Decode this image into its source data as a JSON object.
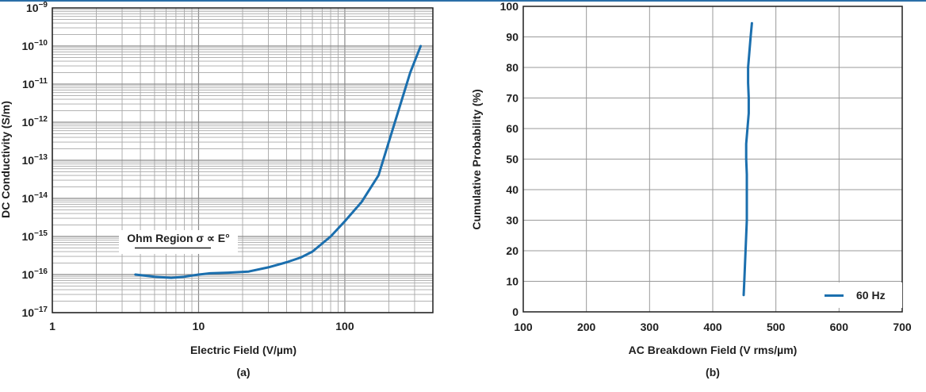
{
  "chart_data": [
    {
      "panel_label": "(a)",
      "type": "line",
      "xlabel": "Electric Field (V/µm)",
      "ylabel": "DC Conductivity (S/m)",
      "x_scale": "log",
      "y_scale": "log",
      "xlim": [
        1,
        400
      ],
      "ylim": [
        1e-17,
        1e-09
      ],
      "x_ticks": [
        {
          "value": 1,
          "label": "1"
        },
        {
          "value": 10,
          "label": "10"
        },
        {
          "value": 100,
          "label": "100"
        }
      ],
      "y_ticks": [
        {
          "value": 1e-09,
          "base": "10",
          "exp": "−9"
        },
        {
          "value": 1e-10,
          "base": "10",
          "exp": "−10"
        },
        {
          "value": 1e-11,
          "base": "10",
          "exp": "−11"
        },
        {
          "value": 1e-12,
          "base": "10",
          "exp": "−12"
        },
        {
          "value": 1e-13,
          "base": "10",
          "exp": "−13"
        },
        {
          "value": 1e-14,
          "base": "10",
          "exp": "−14"
        },
        {
          "value": 1e-15,
          "base": "10",
          "exp": "−15"
        },
        {
          "value": 1e-16,
          "base": "10",
          "exp": "−16"
        },
        {
          "value": 1e-17,
          "base": "10",
          "exp": "−17"
        }
      ],
      "grid": true,
      "annotation": "Ohm Region σ ∝ E°",
      "series": [
        {
          "color": "#1b6fae",
          "x": [
            3.7,
            5,
            6.5,
            8,
            10,
            12,
            16,
            22,
            30,
            40,
            50,
            60,
            80,
            100,
            130,
            170,
            220,
            280,
            330
          ],
          "y": [
            1e-16,
            8.8e-17,
            8.2e-17,
            8.8e-17,
            1e-16,
            1.08e-16,
            1.12e-16,
            1.2e-16,
            1.55e-16,
            2.1e-16,
            2.8e-16,
            4e-16,
            1e-15,
            2.5e-15,
            8e-15,
            4e-14,
            1e-12,
            2e-11,
            1e-10
          ]
        }
      ]
    },
    {
      "panel_label": "(b)",
      "type": "line",
      "xlabel": "AC Breakdown Field (V rms/µm)",
      "ylabel": "Cumulative Probability (%)",
      "xlim": [
        100,
        700
      ],
      "ylim": [
        0,
        100
      ],
      "x_ticks": [
        100,
        200,
        300,
        400,
        500,
        600,
        700
      ],
      "y_ticks": [
        0,
        10,
        20,
        30,
        40,
        50,
        60,
        70,
        80,
        90,
        100
      ],
      "grid": true,
      "legend_position": "bottom-right",
      "series": [
        {
          "name": "60 Hz",
          "color": "#1b6fae",
          "x": [
            449,
            450,
            451,
            452,
            453,
            454,
            454,
            454,
            454,
            453,
            453,
            455,
            457,
            457,
            456,
            456,
            458,
            460,
            462
          ],
          "y": [
            5.5,
            10,
            15,
            20,
            25,
            30,
            35,
            40,
            45,
            50,
            55,
            60,
            65,
            70,
            75,
            80,
            85,
            90,
            94.5
          ]
        }
      ]
    }
  ]
}
